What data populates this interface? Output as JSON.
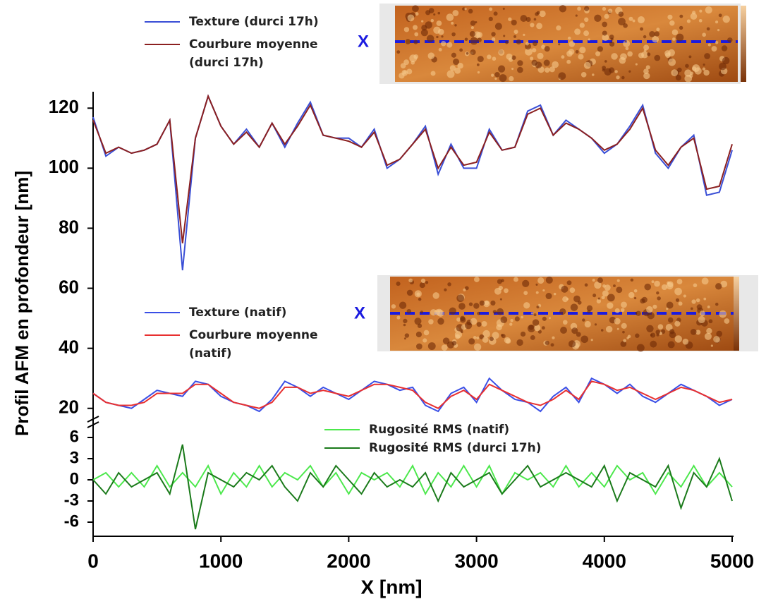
{
  "chart_data": [
    {
      "type": "line",
      "y_label": "Profil AFM en profondeur [nm]",
      "annotations": [
        "X",
        "X"
      ],
      "x": [
        0,
        100,
        200,
        300,
        400,
        500,
        600,
        700,
        800,
        900,
        1000,
        1100,
        1200,
        1300,
        1400,
        1500,
        1600,
        1700,
        1800,
        1900,
        2000,
        2100,
        2200,
        2300,
        2400,
        2500,
        2600,
        2700,
        2800,
        2900,
        3000,
        3100,
        3200,
        3300,
        3400,
        3500,
        3600,
        3700,
        3800,
        3900,
        4000,
        4100,
        4200,
        4300,
        4400,
        4500,
        4600,
        4700,
        4800,
        4900,
        5000
      ],
      "series": [
        {
          "name": "Texture (durci 17h)",
          "color": "#3a4fd6",
          "values": [
            117,
            104,
            107,
            105,
            106,
            108,
            116,
            66,
            110,
            124,
            114,
            108,
            113,
            107,
            115,
            107,
            115,
            122,
            111,
            110,
            110,
            107,
            113,
            100,
            103,
            108,
            114,
            98,
            108,
            100,
            100,
            113,
            106,
            107,
            119,
            121,
            111,
            116,
            113,
            110,
            105,
            108,
            114,
            121,
            105,
            100,
            107,
            111,
            91,
            92,
            106
          ]
        },
        {
          "name": "Courbure moyenne (durci 17h)",
          "color": "#8b2020",
          "values": [
            116,
            105,
            107,
            105,
            106,
            108,
            116,
            75,
            110,
            124,
            114,
            108,
            112,
            107,
            115,
            108,
            114,
            121,
            111,
            110,
            109,
            107,
            112,
            101,
            103,
            108,
            113,
            100,
            107,
            101,
            102,
            112,
            106,
            107,
            118,
            120,
            111,
            115,
            113,
            110,
            106,
            108,
            113,
            120,
            106,
            101,
            107,
            110,
            93,
            94,
            108
          ]
        },
        {
          "name": "Texture (natif)",
          "color": "#3a4fe6",
          "values": [
            25,
            22,
            21,
            20,
            23,
            26,
            25,
            24,
            29,
            28,
            24,
            22,
            21,
            19,
            23,
            29,
            27,
            24,
            27,
            25,
            23,
            26,
            29,
            28,
            26,
            27,
            21,
            19,
            25,
            27,
            22,
            30,
            26,
            23,
            22,
            19,
            24,
            27,
            22,
            30,
            28,
            25,
            28,
            24,
            22,
            25,
            28,
            26,
            24,
            21,
            23
          ]
        },
        {
          "name": "Courbure moyenne (natif)",
          "color": "#e83030",
          "values": [
            25,
            22,
            21,
            21,
            22,
            25,
            25,
            25,
            28,
            28,
            25,
            22,
            21,
            20,
            22,
            27,
            27,
            25,
            26,
            25,
            24,
            26,
            28,
            28,
            27,
            26,
            22,
            20,
            24,
            26,
            23,
            28,
            26,
            24,
            22,
            21,
            23,
            26,
            23,
            29,
            28,
            26,
            27,
            25,
            23,
            25,
            27,
            26,
            24,
            22,
            23
          ]
        }
      ],
      "ylim": [
        15,
        125
      ],
      "yticks": [
        20,
        40,
        60,
        80,
        100,
        120
      ]
    },
    {
      "type": "line",
      "x_label": "X [nm]",
      "x": [
        0,
        100,
        200,
        300,
        400,
        500,
        600,
        700,
        800,
        900,
        1000,
        1100,
        1200,
        1300,
        1400,
        1500,
        1600,
        1700,
        1800,
        1900,
        2000,
        2100,
        2200,
        2300,
        2400,
        2500,
        2600,
        2700,
        2800,
        2900,
        3000,
        3100,
        3200,
        3300,
        3400,
        3500,
        3600,
        3700,
        3800,
        3900,
        4000,
        4100,
        4200,
        4300,
        4400,
        4500,
        4600,
        4700,
        4800,
        4900,
        5000
      ],
      "series": [
        {
          "name": "Rugosité RMS (natif)",
          "color": "#4ce84c",
          "values": [
            0,
            1,
            -1,
            1,
            -1,
            2,
            -1,
            1,
            -1,
            2,
            -2,
            1,
            -1,
            2,
            -1,
            1,
            0,
            2,
            -1,
            1,
            -2,
            1,
            0,
            1,
            -1,
            2,
            -2,
            1,
            -1,
            2,
            -1,
            2,
            -2,
            1,
            0,
            1,
            -1,
            2,
            -1,
            1,
            -1,
            2,
            0,
            1,
            -2,
            1,
            -1,
            2,
            -1,
            1,
            -1
          ]
        },
        {
          "name": "Rugosité RMS (durci 17h)",
          "color": "#1a7a1a",
          "values": [
            0,
            -2,
            1,
            -1,
            0,
            1,
            -2,
            5,
            -7,
            1,
            0,
            -1,
            1,
            0,
            2,
            -1,
            -3,
            1,
            -1,
            2,
            0,
            -2,
            1,
            -1,
            0,
            -1,
            1,
            -3,
            1,
            -1,
            0,
            1,
            -2,
            0,
            2,
            -1,
            0,
            1,
            0,
            -1,
            2,
            -3,
            1,
            0,
            -1,
            2,
            -4,
            1,
            -1,
            3,
            -3
          ]
        }
      ],
      "xlim": [
        0,
        5000
      ],
      "xticks": [
        0,
        1000,
        2000,
        3000,
        4000,
        5000
      ],
      "ylim": [
        -8,
        8
      ],
      "yticks": [
        6,
        3,
        0,
        -3,
        -6
      ]
    }
  ]
}
